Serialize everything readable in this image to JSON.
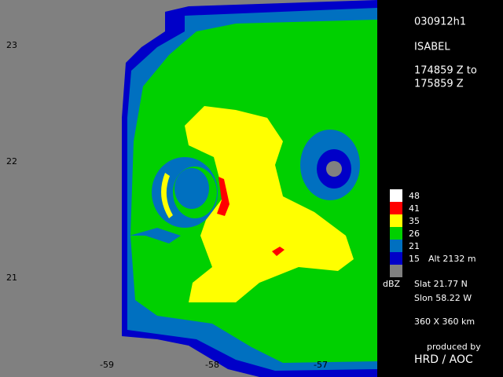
{
  "map": {
    "lat_labels": [
      "23",
      "22",
      "21"
    ],
    "lon_labels": [
      "-59",
      "-58",
      "-57"
    ]
  },
  "panel": {
    "file_id": "030912h1",
    "storm": "ISABEL",
    "time_from": "174859 Z to",
    "time_to": "175859 Z",
    "legend": [
      {
        "label": "48",
        "color": "#ffffff"
      },
      {
        "label": "41",
        "color": "#ff0000"
      },
      {
        "label": "35",
        "color": "#ffff00"
      },
      {
        "label": "26",
        "color": "#00d000"
      },
      {
        "label": "21",
        "color": "#0070c0"
      },
      {
        "label": "15",
        "color": "#0000c8"
      }
    ],
    "altitude": "Alt  2132 m",
    "unit": "dBZ",
    "slat": "Slat  21.77 N",
    "slon": "Slon  58.22 W",
    "extent": "360 X 360 km",
    "credit_line": "produced by",
    "credit": "HRD / AOC"
  }
}
